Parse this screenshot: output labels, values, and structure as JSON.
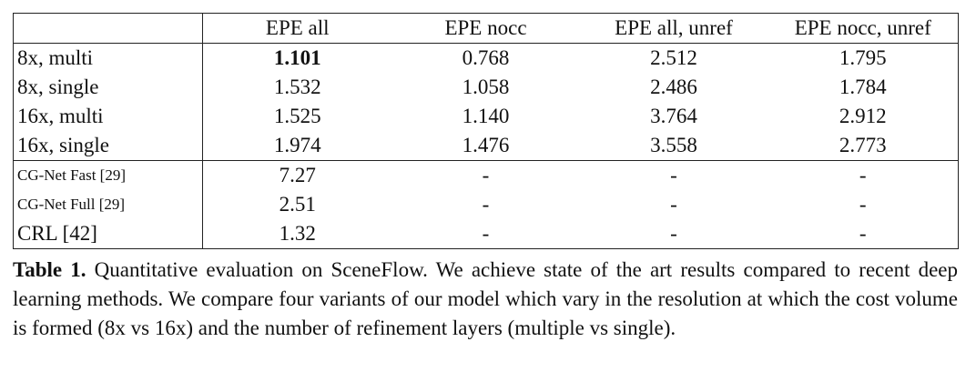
{
  "table": {
    "header": [
      "",
      "EPE all",
      "EPE nocc",
      "EPE all, unref",
      "EPE nocc, unref"
    ],
    "rows": [
      [
        "8x, multi",
        "1.101",
        "0.768",
        "2.512",
        "1.795"
      ],
      [
        "8x, single",
        "1.532",
        "1.058",
        "2.486",
        "1.784"
      ],
      [
        "16x, multi",
        "1.525",
        "1.140",
        "3.764",
        "2.912"
      ],
      [
        "16x, single",
        "1.974",
        "1.476",
        "3.558",
        "2.773"
      ],
      [
        "CG-Net Fast [29]",
        "7.27",
        "-",
        "-",
        "-"
      ],
      [
        "CG-Net Full [29]",
        "2.51",
        "-",
        "-",
        "-"
      ],
      [
        "CRL [42]",
        "1.32",
        "-",
        "-",
        "-"
      ]
    ]
  },
  "caption": {
    "label": "Table 1.",
    "text": "Quantitative evaluation on SceneFlow. We achieve state of the art results compared to recent deep learning methods. We compare four variants of our model which vary in the resolution at which the cost volume is formed (8x vs 16x) and the number of refinement layers (multiple vs single)."
  }
}
